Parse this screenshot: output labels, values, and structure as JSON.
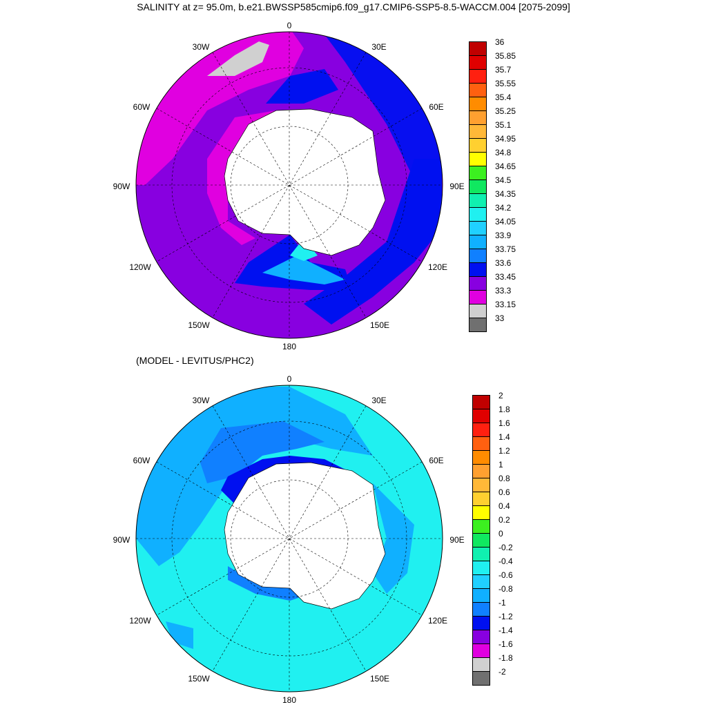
{
  "title": "SALINITY at z=  95.0m, b.e21.BWSSP585cmip6.f09_g17.CMIP6-SSP5-8.5-WACCM.004 [2075-2099]",
  "subtitle": "(MODEL - LEVITUS/PHC2)",
  "map_labels": {
    "top": "0",
    "bottom": "180",
    "left": "90W",
    "right": "90E",
    "ne1": "30E",
    "ne2": "60E",
    "se1": "120E",
    "se2": "150E",
    "nw1": "30W",
    "nw2": "60W",
    "sw1": "120W",
    "sw2": "150W"
  },
  "colorbar_top": {
    "labels": [
      "36",
      "35.85",
      "35.7",
      "35.55",
      "35.4",
      "35.25",
      "35.1",
      "34.95",
      "34.8",
      "34.65",
      "34.5",
      "34.35",
      "34.2",
      "34.05",
      "33.9",
      "33.75",
      "33.6",
      "33.45",
      "33.3",
      "33.15",
      "33"
    ],
    "colors": [
      "#c00000",
      "#e00000",
      "#ff2010",
      "#ff6010",
      "#ff8c00",
      "#ffa030",
      "#ffb838",
      "#ffd030",
      "#ffff00",
      "#3cf020",
      "#10e860",
      "#10f0b0",
      "#20f0f0",
      "#20d0ff",
      "#10b0ff",
      "#1080ff",
      "#0010f0",
      "#8800e0",
      "#e000e0",
      "#d0d0d0",
      "#707070"
    ]
  },
  "colorbar_bottom": {
    "labels": [
      "2",
      "1.8",
      "1.6",
      "1.4",
      "1.2",
      "1",
      "0.8",
      "0.6",
      "0.4",
      "0.2",
      "0",
      "-0.2",
      "-0.4",
      "-0.6",
      "-0.8",
      "-1",
      "-1.2",
      "-1.4",
      "-1.6",
      "-1.8",
      "-2"
    ],
    "colors": [
      "#c00000",
      "#e00000",
      "#ff2010",
      "#ff6010",
      "#ff8c00",
      "#ffa030",
      "#ffb838",
      "#ffd030",
      "#ffff00",
      "#3cf020",
      "#10e860",
      "#10f0b0",
      "#20f0f0",
      "#20d0ff",
      "#10b0ff",
      "#1080ff",
      "#0010f0",
      "#8800e0",
      "#e000e0",
      "#d0d0d0",
      "#707070"
    ]
  }
}
